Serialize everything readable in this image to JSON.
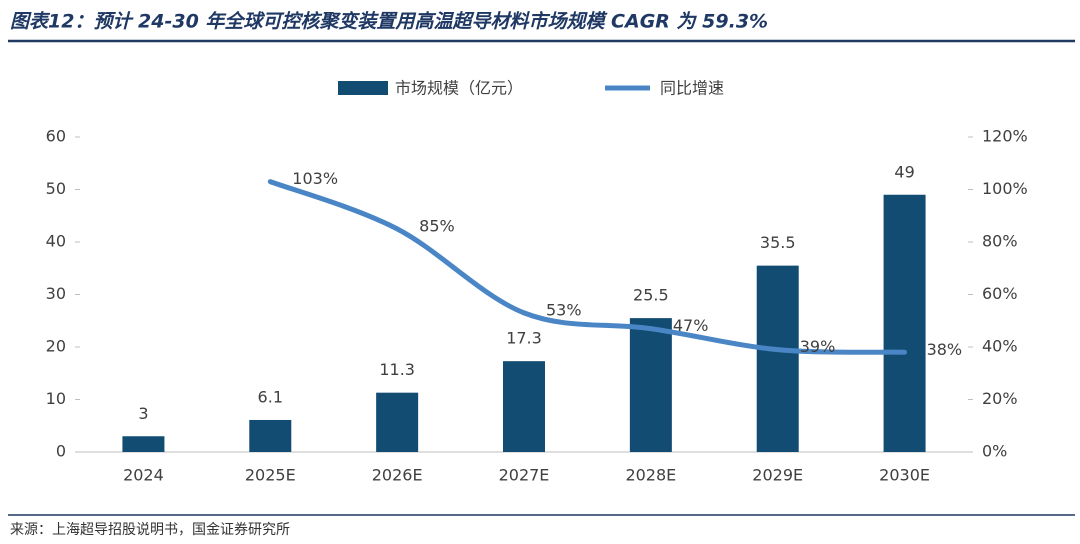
{
  "chart_data": {
    "type": "bar-line",
    "title": "图表12：预计 24-30 年全球可控核聚变装置用高温超导材料市场规模 CAGR 为 59.3%",
    "source": "来源：上海超导招股说明书，国金证券研究所",
    "categories": [
      "2024",
      "2025E",
      "2026E",
      "2027E",
      "2028E",
      "2029E",
      "2030E"
    ],
    "series": [
      {
        "name": "市场规模（亿元）",
        "type": "bar",
        "color": "#134c72",
        "values": [
          3,
          6.1,
          11.3,
          17.3,
          25.5,
          35.5,
          49
        ]
      },
      {
        "name": "同比增速",
        "type": "line",
        "axis": "y2",
        "color": "#4a86c5",
        "values": [
          null,
          103,
          85,
          53,
          47,
          39,
          38
        ],
        "value_labels": [
          null,
          "103%",
          "85%",
          "53%",
          "47%",
          "39%",
          "38%"
        ]
      }
    ],
    "ylim": [
      0,
      60
    ],
    "yticks": [
      0,
      10,
      20,
      30,
      40,
      50,
      60
    ],
    "y2lim": [
      0,
      120
    ],
    "y2ticks": [
      {
        "value": 0,
        "label": "0%"
      },
      {
        "value": 20,
        "label": "20%"
      },
      {
        "value": 40,
        "label": "40%"
      },
      {
        "value": 60,
        "label": "60%"
      },
      {
        "value": 80,
        "label": "80%"
      },
      {
        "value": 100,
        "label": "100%"
      },
      {
        "value": 120,
        "label": "120%"
      }
    ],
    "legend": "top"
  }
}
